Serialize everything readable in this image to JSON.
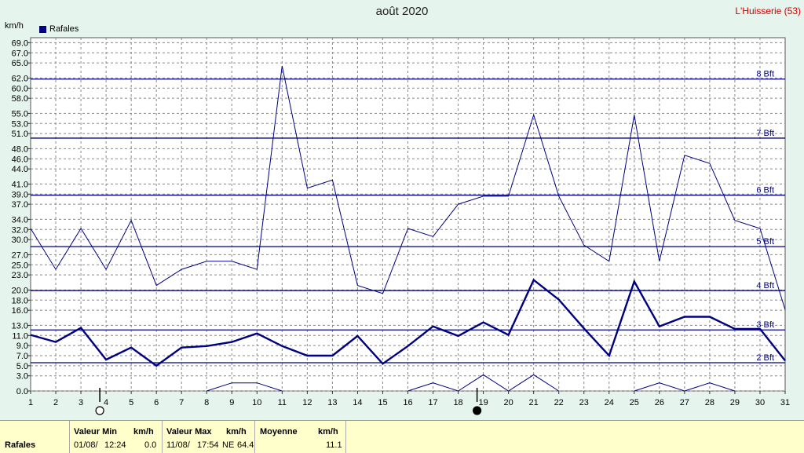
{
  "title": "août 2020",
  "station": "L'Huisserie (53)",
  "unit_label": "km/h",
  "legend_label": "Rafales",
  "colors": {
    "series": "#000080",
    "grid": "#888888",
    "background": "#e6f4ee",
    "plot": "#ffffff",
    "footer": "#ffffcc",
    "station": "#cc0000"
  },
  "chart_data": {
    "type": "line",
    "title": "août 2020",
    "ylabel": "km/h",
    "ylim": [
      0,
      70
    ],
    "xlim": [
      1,
      31
    ],
    "x": [
      1,
      2,
      3,
      4,
      5,
      6,
      7,
      8,
      9,
      10,
      11,
      12,
      13,
      14,
      15,
      16,
      17,
      18,
      19,
      20,
      21,
      22,
      23,
      24,
      25,
      26,
      27,
      28,
      29,
      30,
      31
    ],
    "y_ticks": [
      0.0,
      3.0,
      5.0,
      7.0,
      9.0,
      11.0,
      13.0,
      16.0,
      18.0,
      20.0,
      23.0,
      25.0,
      27.0,
      30.0,
      32.0,
      34.0,
      37.0,
      39.0,
      41.0,
      44.0,
      46.0,
      48.0,
      51.0,
      53.0,
      55.0,
      58.0,
      60.0,
      62.0,
      65.0,
      67.0,
      69.0
    ],
    "series": [
      {
        "name": "Rafales",
        "role": "max",
        "values": [
          32.2,
          24.1,
          32.2,
          24.1,
          33.8,
          20.9,
          24.1,
          25.7,
          25.7,
          24.1,
          64.4,
          40.2,
          41.8,
          20.9,
          19.3,
          32.2,
          30.6,
          37.0,
          38.6,
          38.6,
          54.7,
          38.6,
          28.9,
          25.7,
          54.7,
          25.7,
          46.7,
          45.1,
          33.8,
          32.2,
          16.1
        ]
      },
      {
        "name": "Rafales",
        "role": "mean",
        "values": [
          11.1,
          9.7,
          12.5,
          6.2,
          8.6,
          5.0,
          8.6,
          8.9,
          9.7,
          11.4,
          8.9,
          7.0,
          7.0,
          10.9,
          5.4,
          8.9,
          12.8,
          10.9,
          13.6,
          11.1,
          22.0,
          18.1,
          12.4,
          7.0,
          21.7,
          12.8,
          14.7,
          14.7,
          12.3,
          12.3,
          6.0
        ]
      },
      {
        "name": "Rafales",
        "role": "min",
        "values": [
          null,
          null,
          null,
          null,
          null,
          null,
          null,
          0.0,
          1.6,
          1.6,
          0.0,
          null,
          null,
          null,
          null,
          0.0,
          1.6,
          0.0,
          3.2,
          0.0,
          3.2,
          0.0,
          null,
          null,
          0.0,
          1.6,
          0.0,
          1.6,
          0.0,
          null,
          null
        ]
      }
    ],
    "beaufort_lines": [
      {
        "label": "2 Bft",
        "value": 5.6
      },
      {
        "label": "3 Bft",
        "value": 12.1
      },
      {
        "label": "4 Bft",
        "value": 19.9
      },
      {
        "label": "5 Bft",
        "value": 28.6
      },
      {
        "label": "6 Bft",
        "value": 38.8
      },
      {
        "label": "7 Bft",
        "value": 50.1
      },
      {
        "label": "8 Bft",
        "value": 61.8
      }
    ],
    "moon_phases": [
      {
        "day": 4,
        "phase": "full"
      },
      {
        "day": 19,
        "phase": "new"
      }
    ],
    "grid": true
  },
  "footer": {
    "row_label": "Rafales",
    "min": {
      "header": "Valeur Min",
      "unit": "km/h",
      "date": "01/08/",
      "time": "12:24",
      "value": "0.0"
    },
    "max": {
      "header": "Valeur Max",
      "unit": "km/h",
      "date": "11/08/",
      "time": "17:54",
      "dir": "NE",
      "value": "64.4"
    },
    "mean": {
      "header": "Moyenne",
      "unit": "km/h",
      "value": "11.1"
    }
  }
}
